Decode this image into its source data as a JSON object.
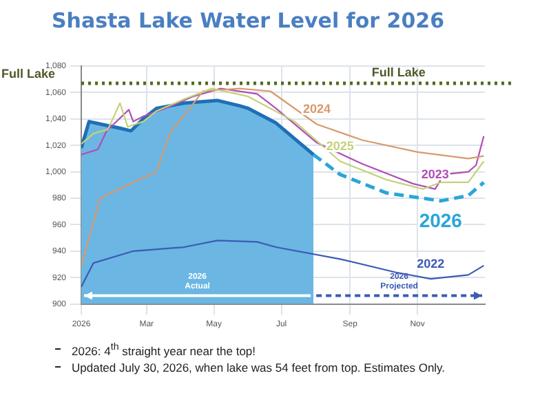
{
  "chart_data": {
    "type": "line",
    "title": "Shasta Lake Water Level for 2026",
    "xlim": [
      "2026-01-01",
      "2027-01-01"
    ],
    "xticks": [
      {
        "value": "2026-01-01",
        "label": "2026"
      },
      {
        "value": "2026-03-01",
        "label": "Mar"
      },
      {
        "value": "2026-05-01",
        "label": "May"
      },
      {
        "value": "2026-07-01",
        "label": "Jul"
      },
      {
        "value": "2026-09-01",
        "label": "Sep"
      },
      {
        "value": "2026-11-01",
        "label": "Nov"
      }
    ],
    "ylim": [
      900,
      1080
    ],
    "yticks": [
      {
        "value": 900,
        "label": "900"
      },
      {
        "value": 920,
        "label": "920"
      },
      {
        "value": 940,
        "label": "940"
      },
      {
        "value": 960,
        "label": "960"
      },
      {
        "value": 980,
        "label": "980"
      },
      {
        "value": 1000,
        "label": "1,000"
      },
      {
        "value": 1020,
        "label": "1,020"
      },
      {
        "value": 1040,
        "label": "1,040"
      },
      {
        "value": 1060,
        "label": "1,060"
      },
      {
        "value": 1080,
        "label": "1,080"
      }
    ],
    "grid": true,
    "marker": "none",
    "ref_lines": [
      {
        "axis": "y",
        "value": 1067,
        "label": "Full Lake",
        "color": "#4f6b1f",
        "line_style": "dotted"
      }
    ],
    "series": [
      {
        "type": "area",
        "color": "#1f6fb5",
        "x": [
          "2026-01-01",
          "2026-01-08",
          "2026-01-19",
          "2026-02-05",
          "2026-02-15",
          "2026-02-26",
          "2026-03-10",
          "2026-04-04",
          "2026-05-04",
          "2026-05-24",
          "2026-06-01",
          "2026-06-26",
          "2026-07-30"
        ],
        "values": [
          1018,
          1038,
          1036,
          1033,
          1031,
          1040,
          1048,
          1052,
          1054,
          1050,
          1048,
          1037,
          1013
        ]
      },
      {
        "name": "2026",
        "line_style": "dashed",
        "color": "#2aa6d8",
        "x": [
          "2026-07-30",
          "2026-08-23",
          "2026-10-04",
          "2026-11-22",
          "2026-12-17",
          "2026-12-31"
        ],
        "values": [
          1013,
          998,
          984,
          978,
          982,
          992
        ]
      },
      {
        "name": "2025",
        "color": "#c5d27a",
        "x": [
          "2026-01-01",
          "2026-01-12",
          "2026-01-25",
          "2026-02-05",
          "2026-02-12",
          "2026-02-26",
          "2026-03-10",
          "2026-04-04",
          "2026-04-29",
          "2026-06-01",
          "2026-07-13",
          "2026-08-23",
          "2026-10-04",
          "2026-11-06",
          "2026-11-22",
          "2026-12-17",
          "2026-12-31"
        ],
        "values": [
          1021,
          1029,
          1032,
          1052,
          1034,
          1038,
          1046,
          1055,
          1063,
          1057,
          1038,
          1008,
          994,
          987,
          992,
          992,
          1008
        ]
      },
      {
        "name": "2024",
        "color": "#d99a6c",
        "x": [
          "2026-01-01",
          "2026-01-18",
          "2026-02-17",
          "2026-03-10",
          "2026-03-22",
          "2026-04-08",
          "2026-04-21",
          "2026-05-24",
          "2026-06-21",
          "2026-08-02",
          "2026-09-12",
          "2026-11-01",
          "2026-12-17",
          "2026-12-31"
        ],
        "values": [
          929,
          980,
          992,
          1000,
          1029,
          1047,
          1061,
          1063,
          1061,
          1036,
          1024,
          1015,
          1010,
          1012
        ]
      },
      {
        "name": "2023",
        "color": "#b04fb5",
        "x": [
          "2026-01-01",
          "2026-01-16",
          "2026-01-24",
          "2026-02-13",
          "2026-02-17",
          "2026-02-26",
          "2026-03-18",
          "2026-04-12",
          "2026-05-07",
          "2026-06-09",
          "2026-06-26",
          "2026-08-02",
          "2026-09-12",
          "2026-10-28",
          "2026-11-17",
          "2026-11-25",
          "2026-12-17",
          "2026-12-24",
          "2026-12-31"
        ],
        "values": [
          1013,
          1017,
          1031,
          1047,
          1038,
          1042,
          1048,
          1057,
          1063,
          1059,
          1048,
          1022,
          1006,
          991,
          987,
          998,
          1000,
          1005,
          1027
        ]
      },
      {
        "name": "2022",
        "color": "#3b5bb5",
        "x": [
          "2026-01-01",
          "2026-01-12",
          "2026-02-17",
          "2026-04-04",
          "2026-05-04",
          "2026-06-09",
          "2026-06-26",
          "2026-08-23",
          "2026-10-12",
          "2026-11-13",
          "2026-12-17",
          "2026-12-31"
        ],
        "values": [
          913,
          931,
          940,
          943,
          948,
          947,
          943,
          934,
          924,
          919,
          922,
          929
        ]
      }
    ],
    "annotations": [
      "2026 Actual",
      "2026 Projected",
      "2026: 4$^{th}$ straight year near the top!",
      "Updated July 30, 2026, when lake was 54 feet from top.  Estimates Only."
    ]
  }
}
